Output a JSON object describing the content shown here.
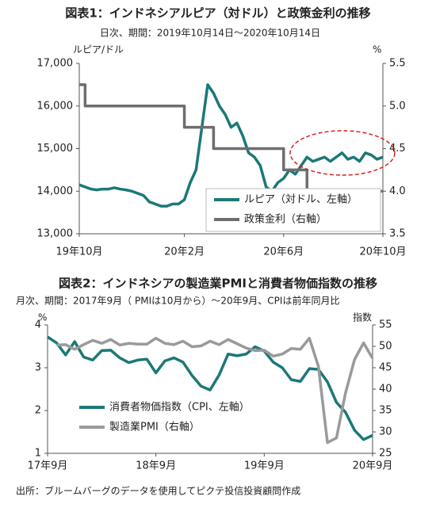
{
  "chart_data": [
    {
      "type": "line",
      "title": "図表1：インドネシアルピア（対ドル）と政策金利の推移",
      "subtitle": "日次、期間：2019年10月14日～2020年10月14日",
      "ylabel": "ルピア/ドル",
      "y2label": "%",
      "categories": [
        "19年10月",
        null,
        null,
        null,
        null,
        null,
        null,
        null,
        null,
        null,
        null,
        null,
        null,
        null,
        null,
        null,
        null,
        null,
        "20年2月",
        null,
        null,
        null,
        null,
        null,
        null,
        null,
        null,
        null,
        null,
        null,
        null,
        null,
        null,
        null,
        null,
        "20年6月",
        null,
        null,
        null,
        null,
        null,
        null,
        null,
        null,
        null,
        null,
        null,
        null,
        null,
        null,
        null,
        null,
        "20年10月"
      ],
      "series": [
        {
          "name": "ルピア（対ドル、左軸）",
          "color": "#1c7878",
          "axis": "y",
          "values": [
            14150,
            14100,
            14050,
            14030,
            14050,
            14050,
            14080,
            14050,
            14030,
            14000,
            13950,
            13900,
            13750,
            13700,
            13650,
            13650,
            13700,
            13700,
            13800,
            14200,
            14500,
            15500,
            16500,
            16300,
            16000,
            15800,
            15500,
            15600,
            15300,
            14900,
            14800,
            14600,
            14100,
            14000,
            14200,
            14300,
            14500,
            14400,
            14600,
            14800,
            14700,
            14750,
            14800,
            14700,
            14800,
            14900,
            14750,
            14800,
            14700,
            14900,
            14850,
            14750,
            14800
          ]
        },
        {
          "name": "政策金利（右軸）",
          "color": "#6e6e6e",
          "axis": "y2",
          "step": true,
          "values": [
            5.25,
            5.0,
            5.0,
            5.0,
            5.0,
            5.0,
            5.0,
            5.0,
            5.0,
            5.0,
            5.0,
            5.0,
            5.0,
            5.0,
            5.0,
            5.0,
            5.0,
            5.0,
            4.75,
            4.75,
            4.75,
            4.75,
            4.75,
            4.5,
            4.5,
            4.5,
            4.5,
            4.5,
            4.5,
            4.5,
            4.5,
            4.5,
            4.5,
            4.5,
            4.5,
            4.25,
            4.25,
            4.25,
            4.25,
            4.0,
            4.0,
            4.0,
            4.0,
            4.0,
            4.0,
            4.0,
            4.0,
            4.0,
            4.0,
            4.0,
            4.0,
            4.0,
            4.0
          ]
        }
      ],
      "ylim": [
        13000,
        17000
      ],
      "yticks": [
        {
          "value": 13000,
          "label": "13,000"
        },
        {
          "value": 14000,
          "label": "14,000"
        },
        {
          "value": 15000,
          "label": "15,000"
        },
        {
          "value": 16000,
          "label": "16,000"
        },
        {
          "value": 17000,
          "label": "17,000"
        }
      ],
      "y2lim": [
        3.5,
        5.5
      ],
      "y2ticks": [
        3.5,
        {
          "value": 4.0,
          "label": "4.0"
        },
        4.5,
        {
          "value": 5.0,
          "label": "5.0"
        },
        5.5
      ],
      "grid": false,
      "legend": "lower right"
    },
    {
      "type": "line",
      "title": "図表2：インドネシアの製造業PMIと消費者物価指数の推移",
      "subtitle": "月次、期間：2017年9月（ PMIは10月から）～20年9月、CPIは前年同月比",
      "ylabel": "%",
      "y2label": "指数",
      "categories": [
        "17年9月",
        null,
        null,
        null,
        null,
        null,
        null,
        null,
        null,
        null,
        null,
        null,
        "18年9月",
        null,
        null,
        null,
        null,
        null,
        null,
        null,
        null,
        null,
        null,
        null,
        "19年9月",
        null,
        null,
        null,
        null,
        null,
        null,
        null,
        null,
        null,
        null,
        null,
        "20年9月"
      ],
      "series": [
        {
          "name": "消費者物価指数（CPI、左軸）",
          "color": "#1c7878",
          "axis": "y",
          "values": [
            3.72,
            3.58,
            3.3,
            3.61,
            3.25,
            3.18,
            3.4,
            3.41,
            3.23,
            3.12,
            3.18,
            3.2,
            2.88,
            3.16,
            3.23,
            3.13,
            2.82,
            2.57,
            2.48,
            2.83,
            3.32,
            3.28,
            3.32,
            3.49,
            3.39,
            3.13,
            3.0,
            2.72,
            2.68,
            2.98,
            2.96,
            2.67,
            2.19,
            1.96,
            1.54,
            1.32,
            1.42
          ]
        },
        {
          "name": "製造業PMI（右軸）",
          "color": "#9a9a9a",
          "axis": "y2",
          "values": [
            null,
            50.3,
            50.4,
            49.3,
            50.4,
            51.4,
            50.7,
            51.6,
            50.3,
            50.7,
            50.5,
            50.5,
            51.9,
            50.7,
            50.4,
            51.2,
            49.9,
            50.1,
            51.2,
            50.4,
            51.6,
            50.6,
            49.6,
            49.0,
            49.1,
            47.7,
            48.2,
            49.5,
            49.3,
            51.9,
            45.3,
            27.5,
            28.6,
            39.1,
            46.9,
            50.8,
            47.2
          ]
        }
      ],
      "ylim": [
        1,
        4
      ],
      "yticks": [
        1,
        2,
        3,
        4
      ],
      "y2lim": [
        25,
        55
      ],
      "y2ticks": [
        25,
        30,
        35,
        40,
        45,
        50,
        55
      ],
      "grid": false,
      "legend": "lower left"
    }
  ],
  "source": "出所：ブルームバーグのデータを使用してピクテ投信投資顧問作成"
}
